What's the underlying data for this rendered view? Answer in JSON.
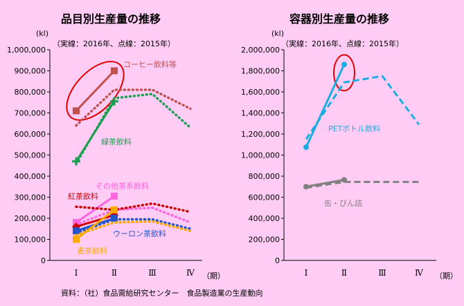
{
  "source": "資料：（社）食品需給研究センター　食品製造業の生産動向",
  "chart_data": [
    {
      "type": "line",
      "title": "品目別生産量の推移",
      "subtitle": "（実線：2016年、点線：2015年）",
      "ylabel": "(kl)",
      "xlabel": "（期）",
      "categories": [
        "Ⅰ",
        "Ⅱ",
        "Ⅲ",
        "Ⅳ"
      ],
      "ylim": [
        0,
        1000000
      ],
      "yticks": [
        "0",
        "100,000",
        "200,000",
        "300,000",
        "400,000",
        "500,000",
        "600,000",
        "700,000",
        "800,000",
        "900,000",
        "1,000,000"
      ],
      "grid": false,
      "series": [
        {
          "name": "コーヒー飲料等",
          "color": "#c0504d",
          "marker": "square",
          "y2016": [
            710000,
            900000
          ],
          "y2015": [
            640000,
            810000,
            810000,
            720000
          ]
        },
        {
          "name": "緑茶飲料",
          "color": "#1aa050",
          "marker": "plus",
          "y2016": [
            470000,
            755000
          ],
          "y2015": [
            460000,
            770000,
            790000,
            630000
          ]
        },
        {
          "name": "その他茶系飲料",
          "color": "#ff66dd",
          "marker": "square",
          "y2016": [
            180000,
            305000
          ],
          "y2015": [
            170000,
            240000,
            250000,
            180000
          ]
        },
        {
          "name": "紅茶飲料",
          "color": "#cc0000",
          "marker": "diamond",
          "y2016": [
            160000,
            215000
          ],
          "y2015": [
            255000,
            240000,
            270000,
            230000
          ]
        },
        {
          "name": "ウーロン茶飲料",
          "color": "#2255cc",
          "marker": "square",
          "y2016": [
            140000,
            200000
          ],
          "y2015": [
            130000,
            195000,
            195000,
            150000
          ]
        },
        {
          "name": "麦茶飲料",
          "color": "#ffaa00",
          "marker": "square",
          "y2016": [
            100000,
            240000
          ],
          "y2015": [
            120000,
            180000,
            185000,
            140000
          ]
        }
      ],
      "highlight": {
        "series": "コーヒー飲料等",
        "color": "#e00000"
      }
    },
    {
      "type": "line",
      "title": "容器別生産量の推移",
      "subtitle": "（実線：2016年、点線：2015年）",
      "ylabel": "(kl)",
      "xlabel": "（期）",
      "categories": [
        "Ⅰ",
        "Ⅱ",
        "Ⅲ",
        "Ⅳ"
      ],
      "ylim": [
        0,
        2000000
      ],
      "yticks": [
        "0",
        "200,000",
        "400,000",
        "600,000",
        "800,000",
        "1,000,000",
        "1,200,000",
        "1,400,000",
        "1,600,000",
        "1,800,000",
        "2,000,000"
      ],
      "grid": false,
      "series": [
        {
          "name": "PETボトル飲料",
          "color": "#1aaee0",
          "marker": "circle",
          "y2016": [
            1075000,
            1860000
          ],
          "y2015": [
            1150000,
            1690000,
            1750000,
            1290000
          ]
        },
        {
          "name": "缶・びん詰",
          "color": "#808080",
          "marker": "circle",
          "y2016": [
            700000,
            765000
          ],
          "y2015": [
            690000,
            745000,
            745000,
            745000
          ]
        }
      ],
      "highlight": {
        "series": "PETボトル飲料",
        "color": "#e00000"
      }
    }
  ]
}
